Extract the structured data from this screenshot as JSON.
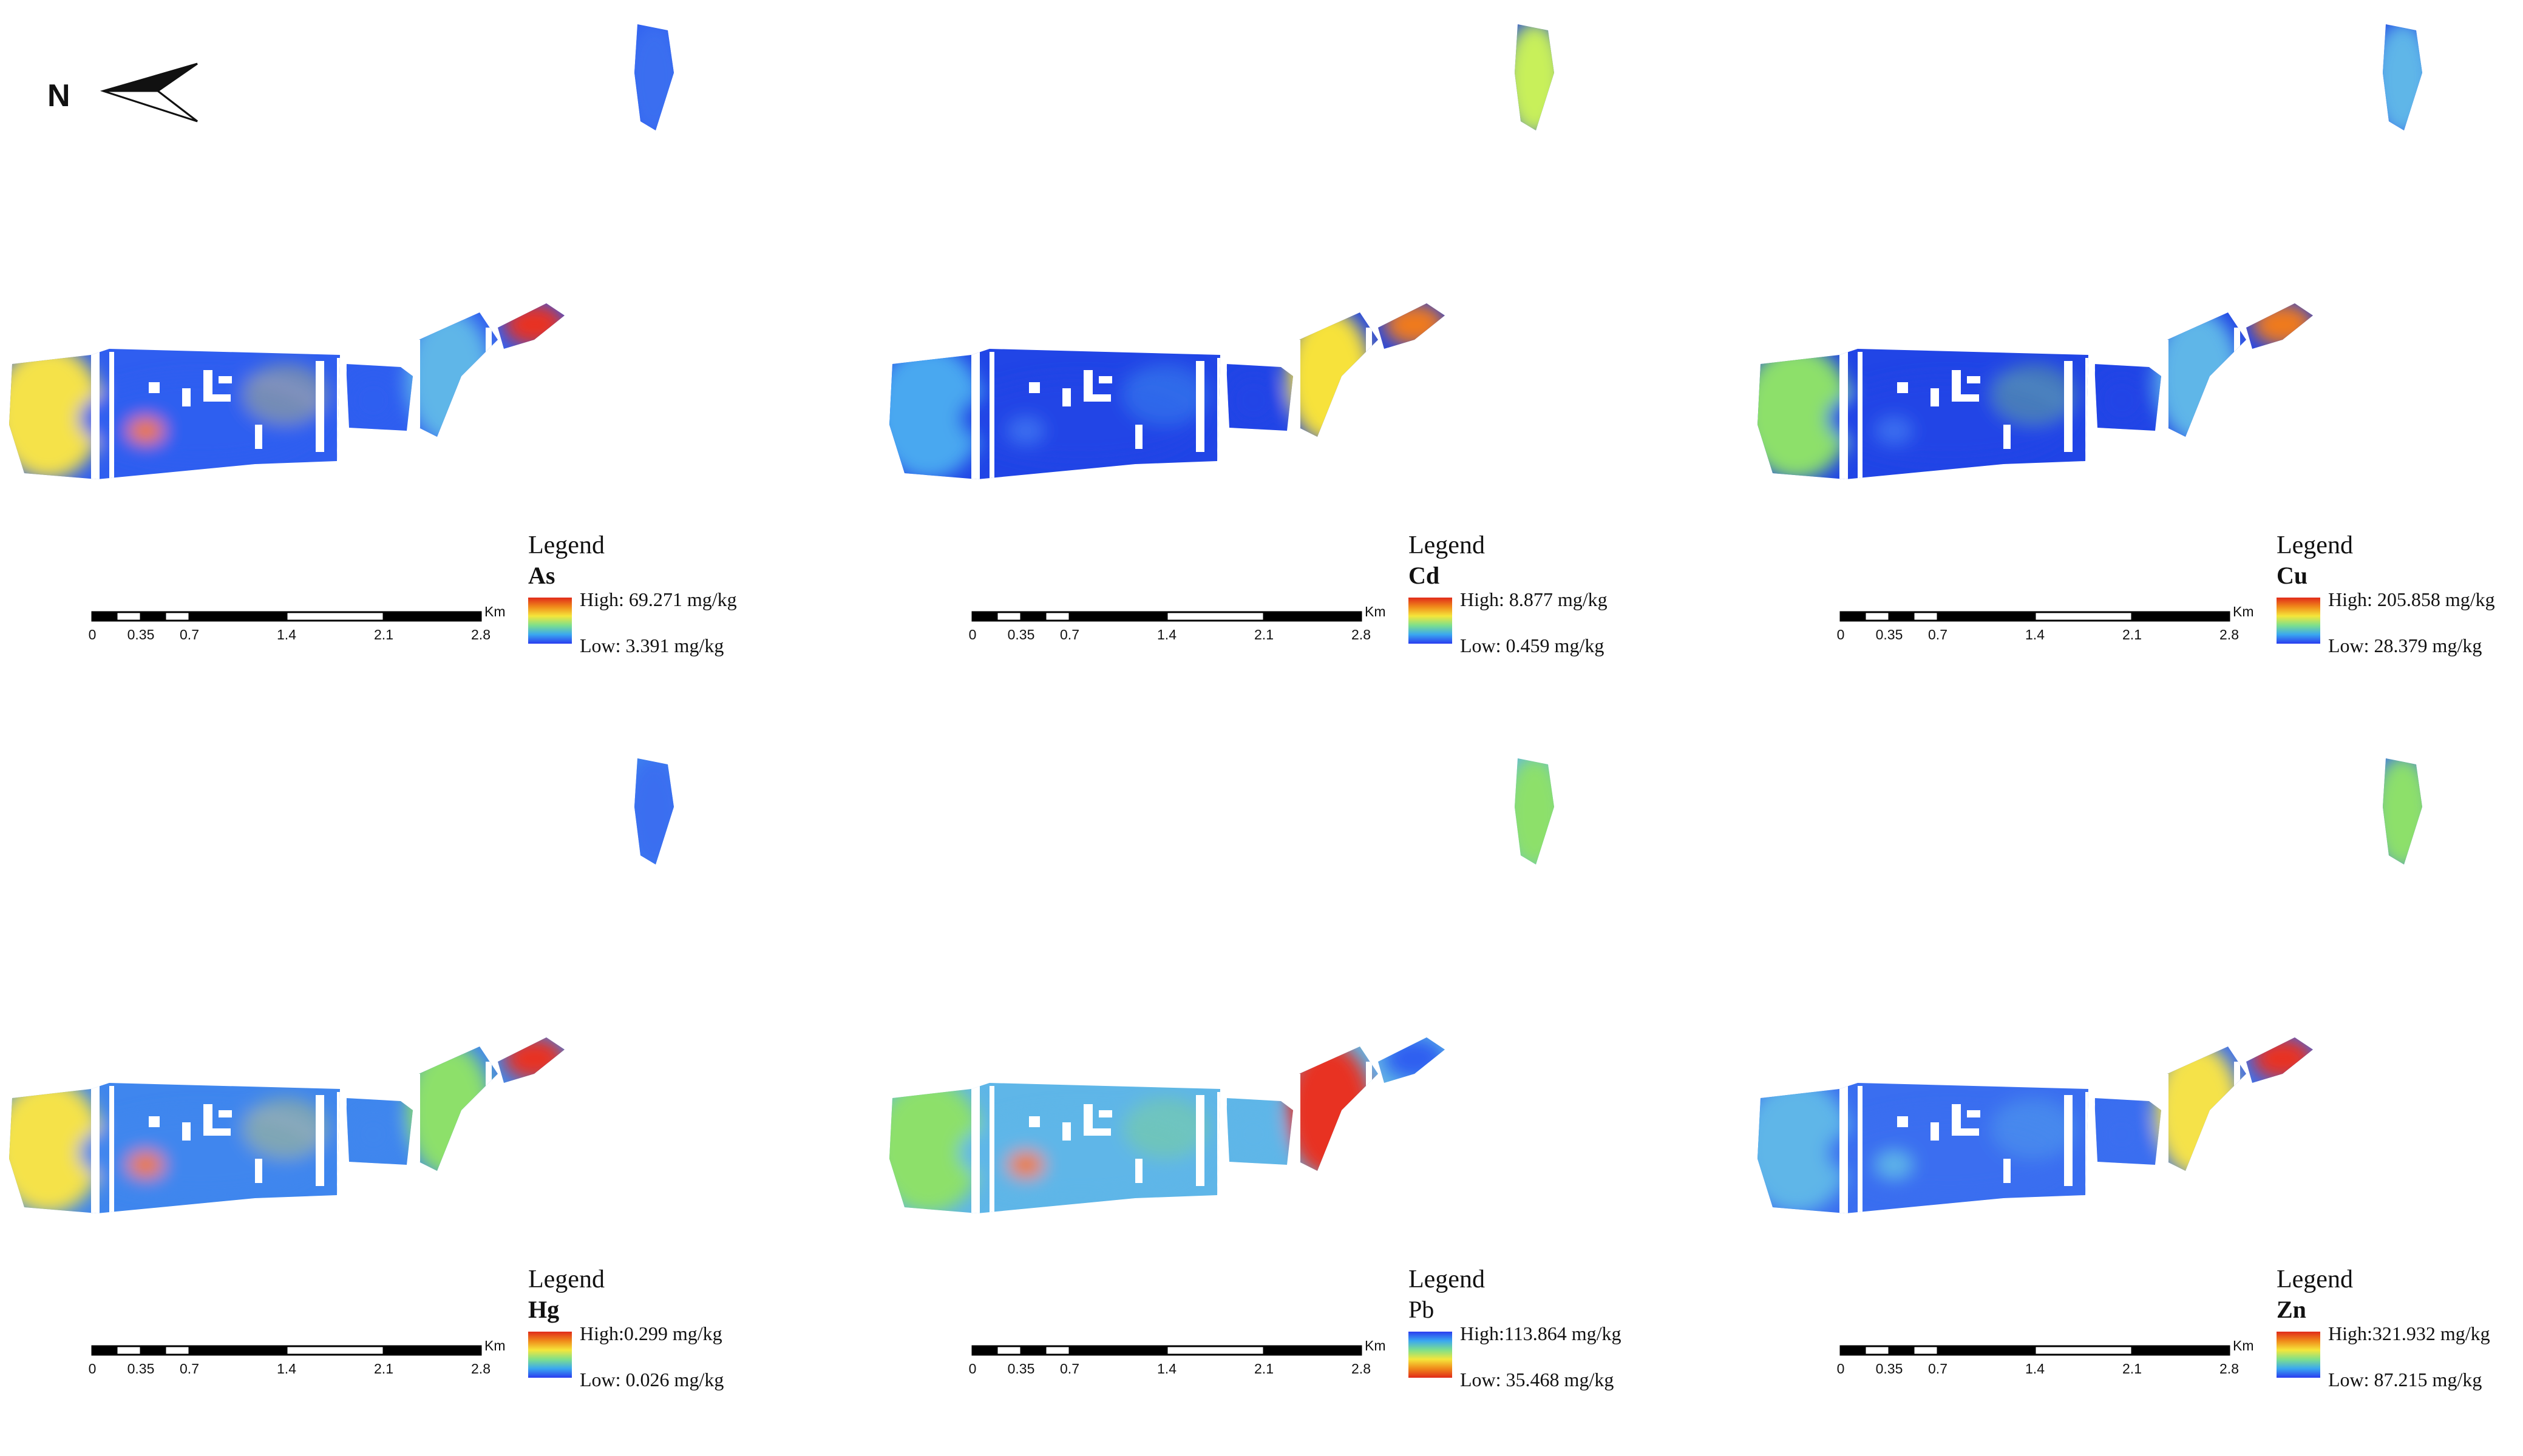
{
  "north_arrow": {
    "letter": "N",
    "icon": "north-arrow-icon"
  },
  "scale": {
    "ticks": [
      "0",
      "0.35",
      "0.7",
      "1.4",
      "2.1",
      "2.8"
    ],
    "unit": "Km"
  },
  "legend_title": "Legend",
  "panels": [
    {
      "var": "As",
      "var_bold": true,
      "high": "High: 69.271 mg/kg",
      "low": "Low: 3.391 mg/kg",
      "ramp": "normal",
      "colors": {
        "west": "#f5e24a",
        "core": "#2f5ef0",
        "hotspot": "#f07a1a",
        "east": "#5fb6e8",
        "tip": "#e83020",
        "island": "#3a6ef0"
      }
    },
    {
      "var": "Cd",
      "var_bold": true,
      "high": "High: 8.877 mg/kg",
      "low": "Low: 0.459 mg/kg",
      "ramp": "normal",
      "colors": {
        "west": "#4aa8f0",
        "core": "#2145e6",
        "hotspot": "#3a6ef0",
        "east": "#f7e23a",
        "tip": "#f07a1a",
        "island": "#c8f05a"
      }
    },
    {
      "var": "Cu",
      "var_bold": true,
      "high": "High: 205.858 mg/kg",
      "low": "Low: 28.379 mg/kg",
      "ramp": "normal",
      "colors": {
        "west": "#8de06a",
        "core": "#2145e6",
        "hotspot": "#3a6ef0",
        "east": "#5fb6e8",
        "tip": "#f07a1a",
        "island": "#5fb6e8"
      }
    },
    {
      "var": "Hg",
      "var_bold": true,
      "high": "High:0.299 mg/kg",
      "low": "Low: 0.026 mg/kg",
      "ramp": "normal",
      "colors": {
        "west": "#f5e24a",
        "core": "#3f86ee",
        "hotspot": "#f07a1a",
        "east": "#8de06a",
        "tip": "#e83020",
        "island": "#3a6ef0"
      }
    },
    {
      "var": "Pb",
      "var_bold": false,
      "high": "High:113.864 mg/kg",
      "low": "Low: 35.468 mg/kg",
      "ramp": "reversed",
      "colors": {
        "west": "#8de06a",
        "core": "#5fb6e8",
        "hotspot": "#f07a1a",
        "east": "#e83020",
        "tip": "#2f5ef0",
        "island": "#8de06a"
      }
    },
    {
      "var": "Zn",
      "var_bold": true,
      "high": "High:321.932 mg/kg",
      "low": "Low: 87.215 mg/kg",
      "ramp": "normal",
      "colors": {
        "west": "#5fb6e8",
        "core": "#3a6ef0",
        "hotspot": "#5fb6e8",
        "east": "#f5e24a",
        "tip": "#e83020",
        "island": "#8de06a"
      }
    }
  ]
}
